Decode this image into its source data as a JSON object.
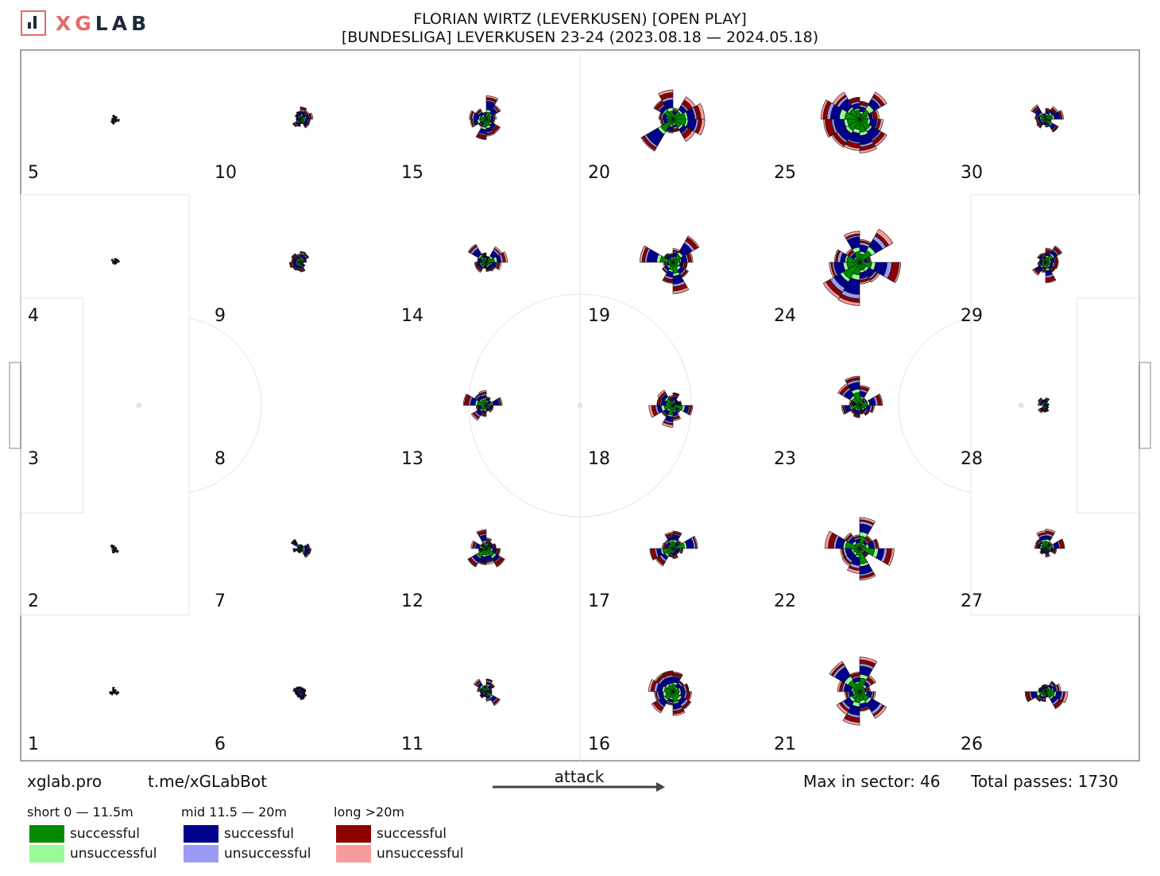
{
  "brand": {
    "text_accent": "XG",
    "text_main": "LAB",
    "logo": "bar-chart-logo"
  },
  "title_line1": "FLORIAN WIRTZ (LEVERKUSEN) [OPEN PLAY]",
  "title_line2": "[BUNDESLIGA] LEVERKUSEN 23-24 (2023.08.18 — 2024.05.18)",
  "footer": {
    "site": "xglab.pro",
    "bot": "t.me/xGLabBot",
    "attack_label": "attack",
    "max_sector": "Max in sector: 46",
    "total_passes": "Total passes: 1730"
  },
  "legend": {
    "groups": [
      {
        "title": "short 0 — 11.5m",
        "successful": "successful",
        "unsuccessful": "unsuccessful",
        "color_success": "#008b00",
        "color_fail": "#98fb98"
      },
      {
        "title": "mid 11.5 — 20m",
        "successful": "successful",
        "unsuccessful": "unsuccessful",
        "color_success": "#00008b",
        "color_fail": "#9b9bf5"
      },
      {
        "title": "long >20m",
        "successful": "successful",
        "unsuccessful": "unsuccessful",
        "color_success": "#8b0000",
        "color_fail": "#f89b9b"
      }
    ]
  },
  "chart_data": {
    "type": "polar-rose-grid",
    "zone_labels": [
      "1",
      "2",
      "3",
      "4",
      "5",
      "6",
      "7",
      "8",
      "9",
      "10",
      "11",
      "12",
      "13",
      "14",
      "15",
      "16",
      "17",
      "18",
      "19",
      "20",
      "21",
      "22",
      "23",
      "24",
      "25",
      "26",
      "27",
      "28",
      "29",
      "30"
    ],
    "max_in_sector": 46,
    "total_passes": 1730,
    "zone_pass_levels": [
      1,
      1,
      0,
      1,
      1,
      3,
      4,
      0,
      5,
      9,
      14,
      16,
      18,
      16,
      22,
      22,
      26,
      22,
      44,
      51,
      46,
      53,
      33,
      68,
      72,
      18,
      14,
      3,
      16,
      15
    ],
    "bins": [
      "short successful",
      "short unsuccessful",
      "mid successful",
      "mid unsuccessful",
      "long successful",
      "long unsuccessful"
    ]
  }
}
